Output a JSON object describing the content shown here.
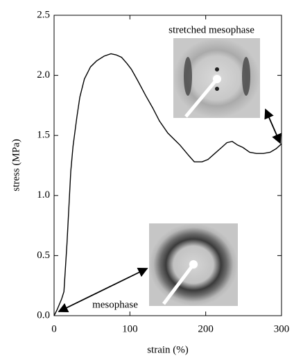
{
  "chart_data": {
    "type": "line",
    "x_label": "strain  (%)",
    "y_label": "stress (MPa)",
    "annotations": [
      "stretched mesophase",
      "mesophase"
    ],
    "xlim": [
      0,
      300
    ],
    "ylim": [
      0,
      2.5
    ],
    "xticks": [
      0,
      100,
      200,
      300
    ],
    "yticks": [
      {
        "value": 0,
        "label": "0.0"
      },
      0.5,
      {
        "value": 1,
        "label": "1.0"
      },
      1.5,
      {
        "value": 2,
        "label": "2.0"
      },
      2.5
    ],
    "x": [
      0,
      4,
      10,
      13,
      17,
      22,
      25,
      30,
      34,
      40,
      48,
      56,
      66,
      75,
      82,
      89,
      96,
      102,
      110,
      121,
      130,
      139,
      150,
      166,
      178,
      185,
      195,
      203,
      212,
      221,
      228,
      235,
      242,
      249,
      258,
      267,
      276,
      285,
      293,
      300
    ],
    "series": [
      {
        "color": "#000000",
        "values": [
          0,
          0.05,
          0.14,
          0.2,
          0.6,
          1.2,
          1.41,
          1.65,
          1.82,
          1.97,
          2.07,
          2.12,
          2.16,
          2.18,
          2.17,
          2.15,
          2.1,
          2.05,
          1.96,
          1.83,
          1.73,
          1.62,
          1.52,
          1.42,
          1.33,
          1.28,
          1.28,
          1.3,
          1.35,
          1.4,
          1.44,
          1.45,
          1.42,
          1.4,
          1.36,
          1.35,
          1.35,
          1.36,
          1.39,
          1.43
        ]
      }
    ]
  }
}
